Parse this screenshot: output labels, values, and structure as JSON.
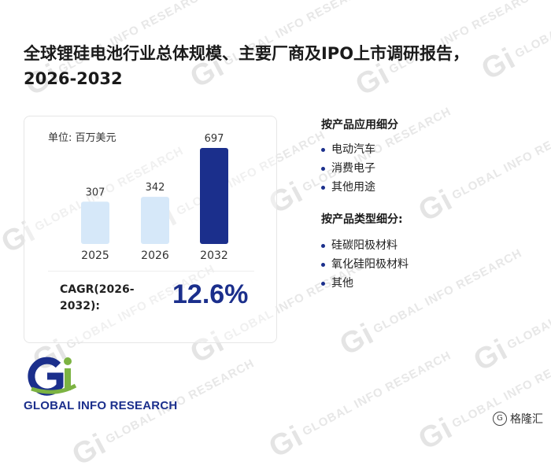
{
  "page": {
    "title": "全球锂硅电池行业总体规模、主要厂商及IPO上市调研报告，2026-2032"
  },
  "chart_card": {
    "unit_label": "单位: 百万美元",
    "cagr_label": "CAGR(2026-2032):",
    "cagr_value": "12.6%"
  },
  "chart_data": {
    "type": "bar",
    "categories": [
      "2025",
      "2026",
      "2032"
    ],
    "values": [
      307,
      342,
      697
    ],
    "data_labels": [
      "307",
      "342",
      "697"
    ],
    "title": "",
    "xlabel": "",
    "ylabel": "",
    "ylim": [
      0,
      800
    ],
    "grid": false,
    "legend": "none",
    "colors": [
      "#d6e8f9",
      "#d6e8f9",
      "#1b2f8c"
    ]
  },
  "sections": [
    {
      "heading": "按产品应用细分",
      "items": [
        "电动汽车",
        "消费电子",
        "其他用途"
      ]
    },
    {
      "heading": "按产品类型细分:",
      "items": [
        "硅碳阳极材料",
        "氧化硅阳极材料",
        "其他"
      ]
    }
  ],
  "logo": {
    "text": "GLOBAL INFO RESEARCH",
    "colors": {
      "green": "#7cb342",
      "navy": "#1b2f8c"
    }
  },
  "watermark": {
    "text": "GLOBAL INFO RESEARCH",
    "mark": "Gi"
  },
  "corner_brand": {
    "icon": "gelonghui-logo-icon",
    "text": "格隆汇"
  }
}
